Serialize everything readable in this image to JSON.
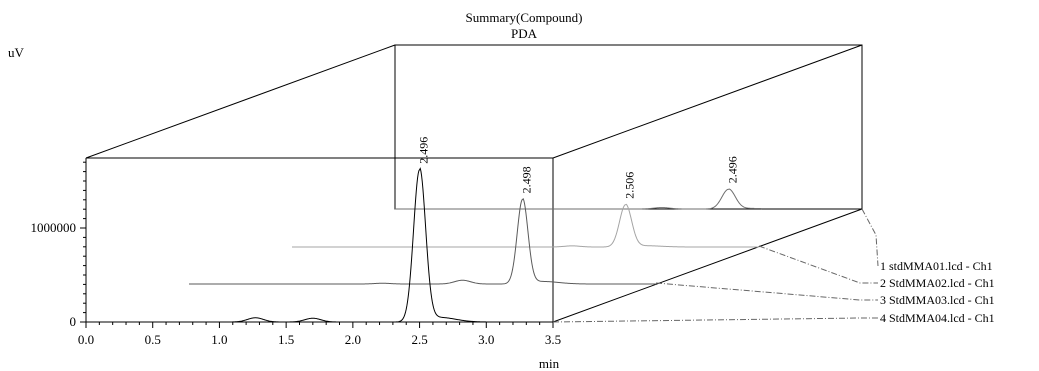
{
  "chart_data": {
    "type": "line",
    "title": "Summary(Compound)",
    "subtitle": "PDA",
    "ylabel": "uV",
    "xlabel": "min",
    "xlim": [
      0.0,
      3.5
    ],
    "ylim": [
      0,
      1000000
    ],
    "x_ticks": [
      "0.0",
      "0.5",
      "1.0",
      "1.5",
      "2.0",
      "2.5",
      "3.0",
      "3.5"
    ],
    "y_ticks": [
      "0",
      "1000000"
    ],
    "grid": false,
    "legend_position": "right",
    "series": [
      {
        "name": "1 stdMMA01.lcd - Ch1",
        "peak_label": "2.496",
        "peak_height": 210000,
        "peak_width": 0.05,
        "bumps": [
          [
            2.0,
            15000
          ]
        ]
      },
      {
        "name": "2 StdMMA02.lcd - Ch1",
        "peak_label": "2.506",
        "peak_height": 450000,
        "peak_width": 0.045,
        "bumps": [
          [
            2.1,
            12000
          ]
        ]
      },
      {
        "name": "3 StdMMA03.lcd - Ch1",
        "peak_label": "2.498",
        "peak_height": 900000,
        "peak_width": 0.04,
        "bumps": [
          [
            2.05,
            40000
          ],
          [
            1.45,
            8000
          ]
        ]
      },
      {
        "name": "4 StdMMA04.lcd - Ch1",
        "peak_label": "2.496",
        "peak_height": 1620000,
        "peak_width": 0.045,
        "bumps": [
          [
            1.27,
            45000
          ],
          [
            1.7,
            40000
          ]
        ]
      }
    ]
  }
}
